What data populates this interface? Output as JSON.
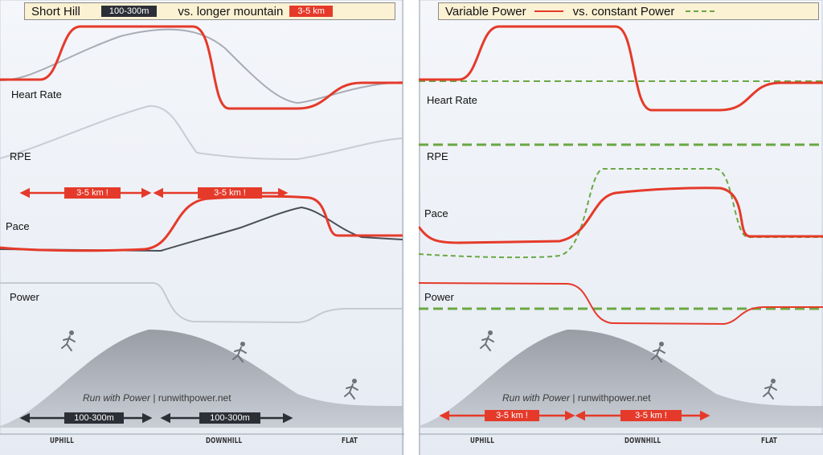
{
  "left": {
    "legend": {
      "title": "Short Hill",
      "chip_dark": "100-300m",
      "vs_text": "vs. longer mountain",
      "chip_red": "3-5 km"
    },
    "labels": {
      "heart_rate": "Heart Rate",
      "rpe": "RPE",
      "pace": "Pace",
      "power": "Power"
    },
    "top_arrows": [
      "3-5 km !",
      "3-5 km !"
    ],
    "bottom_arrows": [
      "100-300m",
      "100-300m"
    ],
    "brand_prefix": "Run with Power",
    "brand_suffix": "| runwithpower.net",
    "terrain": [
      "UPHILL",
      "DOWNHILL",
      "FLAT"
    ]
  },
  "right": {
    "legend": {
      "title": "Variable Power",
      "vs_text": "vs. constant Power"
    },
    "labels": {
      "heart_rate": "Heart Rate",
      "rpe": "RPE",
      "pace": "Pace",
      "power": "Power"
    },
    "bottom_arrows": [
      "3-5 km !",
      "3-5 km !"
    ],
    "brand_prefix": "Run with Power",
    "brand_suffix": "| runwithpower.net",
    "terrain": [
      "UPHILL",
      "DOWNHILL",
      "FLAT"
    ]
  },
  "colors": {
    "red": "#e53a2a",
    "dark": "#2c2f36",
    "green_dashed": "#6aa843",
    "gray_curve": "#b9bcc4",
    "panel_bg": "#eef2f8"
  },
  "icons": [
    "runner-icon"
  ]
}
